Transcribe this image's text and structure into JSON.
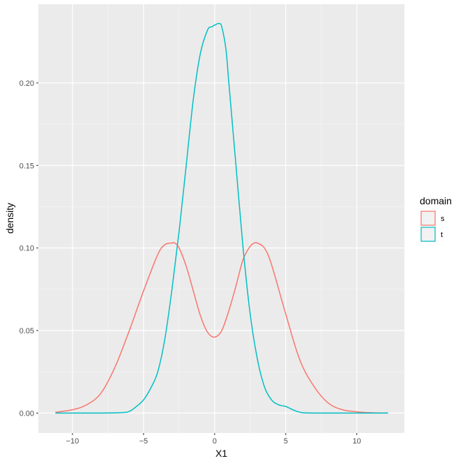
{
  "chart_data": {
    "type": "line",
    "title": "",
    "xlabel": "X1",
    "ylabel": "density",
    "xlim": [
      -12.4,
      13.35
    ],
    "ylim": [
      -0.0121,
      0.2477
    ],
    "x_ticks": [
      -10,
      -5,
      0,
      5,
      10
    ],
    "x_tick_labels": [
      "−10",
      "−5",
      "0",
      "5",
      "10"
    ],
    "y_ticks": [
      0.0,
      0.05,
      0.1,
      0.15,
      0.2
    ],
    "y_tick_labels": [
      "0.00",
      "0.05",
      "0.10",
      "0.15",
      "0.20"
    ],
    "grid": true,
    "legend": {
      "title": "domain",
      "position": "right"
    },
    "series": [
      {
        "name": "s",
        "color": "#F8766D",
        "x": [
          -11.2,
          -10,
          -9,
          -8,
          -7,
          -6,
          -5,
          -4,
          -3.5,
          -3,
          -2.8,
          -2.5,
          -2,
          -1.5,
          -1,
          -0.5,
          0,
          0.5,
          1,
          1.5,
          2,
          2.5,
          2.8,
          3,
          3.5,
          4,
          5,
          6,
          7,
          8,
          9,
          10,
          11,
          12.2
        ],
        "y": [
          0.0005,
          0.002,
          0.005,
          0.012,
          0.028,
          0.05,
          0.074,
          0.096,
          0.102,
          0.103,
          0.103,
          0.1,
          0.089,
          0.074,
          0.059,
          0.049,
          0.046,
          0.05,
          0.062,
          0.077,
          0.093,
          0.101,
          0.103,
          0.103,
          0.1,
          0.09,
          0.06,
          0.032,
          0.016,
          0.006,
          0.002,
          0.0008,
          0.0002,
          0.0
        ]
      },
      {
        "name": "t",
        "color": "#00BFC4",
        "x": [
          -11.2,
          -8,
          -6.5,
          -6,
          -5.5,
          -5,
          -4.5,
          -4,
          -3.5,
          -3,
          -2.5,
          -2,
          -1.5,
          -1,
          -0.5,
          -0.2,
          0,
          0.3,
          0.5,
          0.8,
          1,
          1.5,
          2,
          2.5,
          3,
          3.5,
          4,
          4.5,
          5,
          5.5,
          6,
          7,
          12.2
        ],
        "y": [
          0.0,
          0.0,
          0.0003,
          0.001,
          0.004,
          0.008,
          0.015,
          0.025,
          0.045,
          0.075,
          0.11,
          0.15,
          0.19,
          0.218,
          0.232,
          0.234,
          0.235,
          0.236,
          0.234,
          0.22,
          0.2,
          0.15,
          0.1,
          0.06,
          0.033,
          0.016,
          0.008,
          0.005,
          0.004,
          0.002,
          0.0005,
          0.0,
          0.0
        ]
      }
    ]
  }
}
